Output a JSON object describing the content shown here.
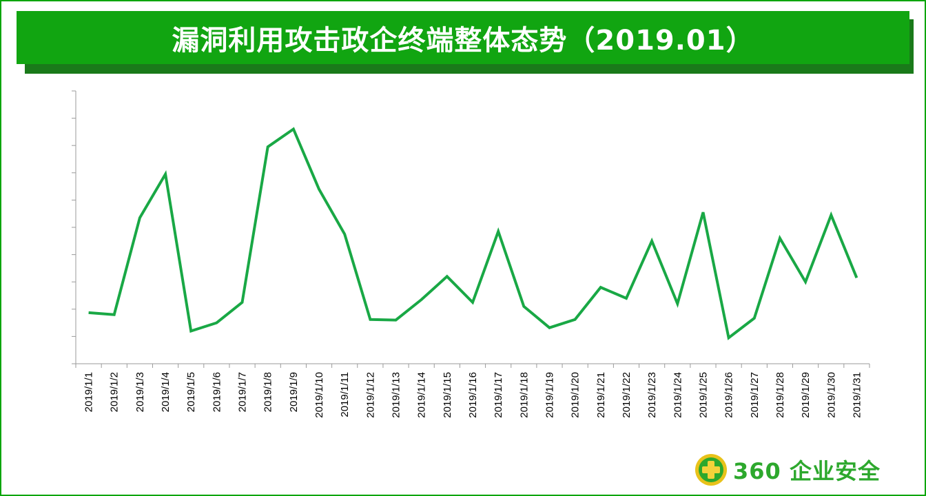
{
  "header": {
    "title": "漏洞利用攻击政企终端整体态势（2019.01）"
  },
  "colors": {
    "brand_green": "#11a511",
    "line": "#19a845",
    "logo": "#2da82d"
  },
  "logo": {
    "icon": "plus-shield-icon",
    "text": "360 企业安全"
  },
  "chart_data": {
    "type": "line",
    "title": "漏洞利用攻击政企终端整体态势（2019.01）",
    "xlabel": "",
    "ylabel": "",
    "y_tick_labels_shown": false,
    "ylim": [
      0,
      10
    ],
    "grid": false,
    "categories": [
      "2019/1/1",
      "2019/1/2",
      "2019/1/3",
      "2019/1/4",
      "2019/1/5",
      "2019/1/6",
      "2019/1/7",
      "2019/1/8",
      "2019/1/9",
      "2019/1/10",
      "2019/1/11",
      "2019/1/12",
      "2019/1/13",
      "2019/1/14",
      "2019/1/15",
      "2019/1/16",
      "2019/1/17",
      "2019/1/18",
      "2019/1/19",
      "2019/1/20",
      "2019/1/21",
      "2019/1/22",
      "2019/1/23",
      "2019/1/24",
      "2019/1/25",
      "2019/1/26",
      "2019/1/27",
      "2019/1/28",
      "2019/1/29",
      "2019/1/30",
      "2019/1/31"
    ],
    "series": [
      {
        "values": [
          1.87,
          1.8,
          5.35,
          6.95,
          1.2,
          1.5,
          2.25,
          7.95,
          8.6,
          6.4,
          4.75,
          1.62,
          1.6,
          2.35,
          3.2,
          2.25,
          4.85,
          2.1,
          1.32,
          1.62,
          2.8,
          2.4,
          4.5,
          2.2,
          5.55,
          0.95,
          1.67,
          4.6,
          3.0,
          5.45,
          3.15
        ]
      }
    ]
  }
}
